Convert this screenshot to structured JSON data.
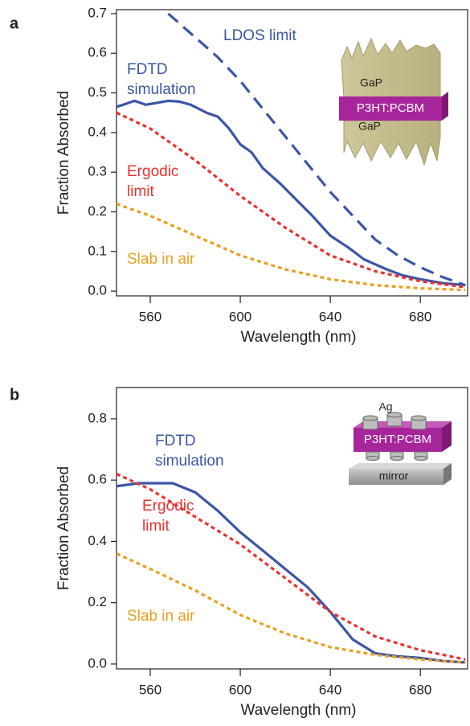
{
  "chart_data": [
    {
      "type": "line",
      "panel": "a",
      "xlabel": "Wavelength (nm)",
      "ylabel": "Fraction Absorbed",
      "xlim": [
        545,
        701
      ],
      "ylim": [
        -0.012,
        0.71
      ],
      "xticks": [
        560,
        600,
        640,
        680
      ],
      "yticks": [
        {
          "value": 0,
          "label": "0.0"
        },
        0.1,
        0.2,
        0.3,
        0.4,
        0.5,
        0.6,
        0.7
      ],
      "series": [
        {
          "name": "LDOS limit",
          "color": "#3b56a6",
          "style": "dashed",
          "x": [
            568,
            580,
            590,
            600,
            610,
            620,
            630,
            640,
            650,
            660,
            670,
            680,
            690,
            700
          ],
          "values": [
            0.7,
            0.64,
            0.59,
            0.53,
            0.46,
            0.39,
            0.32,
            0.25,
            0.19,
            0.13,
            0.09,
            0.06,
            0.035,
            0.015
          ]
        },
        {
          "name": "FDTD simulation",
          "color": "#3b56a6",
          "style": "solid",
          "x": [
            545,
            548,
            553,
            558,
            563,
            568,
            573,
            578,
            585,
            590,
            595,
            600,
            605,
            610,
            618,
            625,
            632,
            640,
            648,
            655,
            665,
            672,
            680,
            690,
            700
          ],
          "values": [
            0.465,
            0.47,
            0.48,
            0.47,
            0.475,
            0.48,
            0.478,
            0.47,
            0.45,
            0.44,
            0.41,
            0.37,
            0.35,
            0.31,
            0.27,
            0.23,
            0.19,
            0.14,
            0.11,
            0.08,
            0.055,
            0.04,
            0.03,
            0.02,
            0.015
          ]
        },
        {
          "name": "Ergodic limit",
          "color": "#e8312f",
          "style": "dotted",
          "x": [
            545,
            560,
            580,
            600,
            620,
            640,
            660,
            680,
            700
          ],
          "values": [
            0.45,
            0.41,
            0.33,
            0.24,
            0.16,
            0.09,
            0.05,
            0.025,
            0.01
          ]
        },
        {
          "name": "Slab in air",
          "color": "#e8a020",
          "style": "dotted",
          "x": [
            545,
            560,
            580,
            600,
            620,
            640,
            660,
            680,
            700
          ],
          "values": [
            0.22,
            0.19,
            0.14,
            0.09,
            0.055,
            0.03,
            0.015,
            0.007,
            0.003
          ]
        }
      ],
      "inset_labels": [
        "GaP",
        "P3HT:PCBM",
        "GaP"
      ]
    },
    {
      "type": "line",
      "panel": "b",
      "xlabel": "Wavelength (nm)",
      "ylabel": "Fraction Absorbed",
      "xlim": [
        545,
        701
      ],
      "ylim": [
        -0.016,
        0.902
      ],
      "xticks": [
        560,
        600,
        640,
        680
      ],
      "yticks": [
        {
          "value": 0,
          "label": "0.0"
        },
        0.2,
        0.4,
        0.6,
        0.8
      ],
      "series": [
        {
          "name": "FDTD simulation",
          "color": "#3b56a6",
          "style": "solid",
          "x": [
            545,
            555,
            570,
            580,
            590,
            600,
            610,
            620,
            630,
            640,
            650,
            660,
            670,
            680,
            690,
            700
          ],
          "values": [
            0.58,
            0.59,
            0.59,
            0.56,
            0.5,
            0.43,
            0.37,
            0.31,
            0.25,
            0.17,
            0.08,
            0.035,
            0.025,
            0.02,
            0.01,
            0.005
          ]
        },
        {
          "name": "Ergodic limit",
          "color": "#e8312f",
          "style": "dotted",
          "x": [
            545,
            560,
            580,
            600,
            620,
            640,
            660,
            680,
            700
          ],
          "values": [
            0.62,
            0.57,
            0.48,
            0.39,
            0.28,
            0.17,
            0.09,
            0.045,
            0.015
          ]
        },
        {
          "name": "Slab in air",
          "color": "#e8a020",
          "style": "dotted",
          "x": [
            545,
            560,
            580,
            600,
            620,
            640,
            660,
            680,
            700
          ],
          "values": [
            0.36,
            0.31,
            0.24,
            0.16,
            0.1,
            0.055,
            0.03,
            0.015,
            0.005
          ]
        }
      ],
      "inset_labels": [
        "Ag",
        "P3HT:PCBM",
        "mirror"
      ]
    }
  ]
}
